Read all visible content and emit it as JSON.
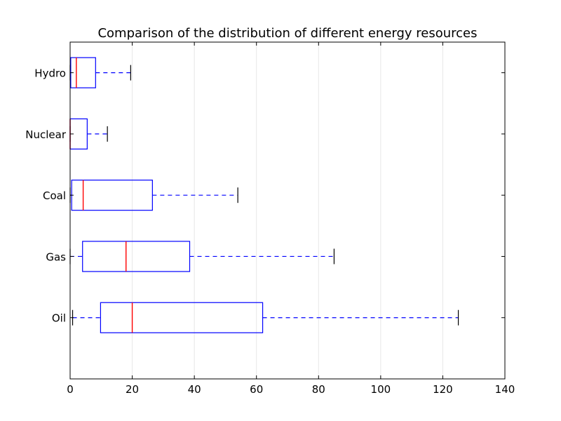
{
  "chart_data": {
    "type": "boxplot",
    "orientation": "horizontal",
    "title": "Comparison of the distribution of different energy resources",
    "xlabel": "",
    "ylabel": "",
    "xlim": [
      0,
      140
    ],
    "xticks": [
      "0",
      "20",
      "40",
      "60",
      "80",
      "100",
      "120",
      "140"
    ],
    "grid": "vertical",
    "categories": [
      "Oil",
      "Gas",
      "Coal",
      "Nuclear",
      "Hydro"
    ],
    "boxes": [
      {
        "label": "Oil",
        "whisker_low": 0.8,
        "q1": 9.8,
        "median": 20,
        "q3": 62,
        "whisker_high": 125
      },
      {
        "label": "Gas",
        "whisker_low": 0,
        "q1": 4,
        "median": 18,
        "q3": 38.5,
        "whisker_high": 85
      },
      {
        "label": "Coal",
        "whisker_low": 0,
        "q1": 0.5,
        "median": 4.2,
        "q3": 26.5,
        "whisker_high": 54
      },
      {
        "label": "Nuclear",
        "whisker_low": 0,
        "q1": 0,
        "median": 0,
        "q3": 5.5,
        "whisker_high": 12
      },
      {
        "label": "Hydro",
        "whisker_low": 0,
        "q1": 0.2,
        "median": 2,
        "q3": 8.2,
        "whisker_high": 19.5
      }
    ],
    "colors": {
      "box": "#0000ff",
      "median": "#ff0000",
      "whisker": "#0000ff",
      "cap": "#000000",
      "grid": "#e6e6e6",
      "axes": "#000000"
    }
  }
}
